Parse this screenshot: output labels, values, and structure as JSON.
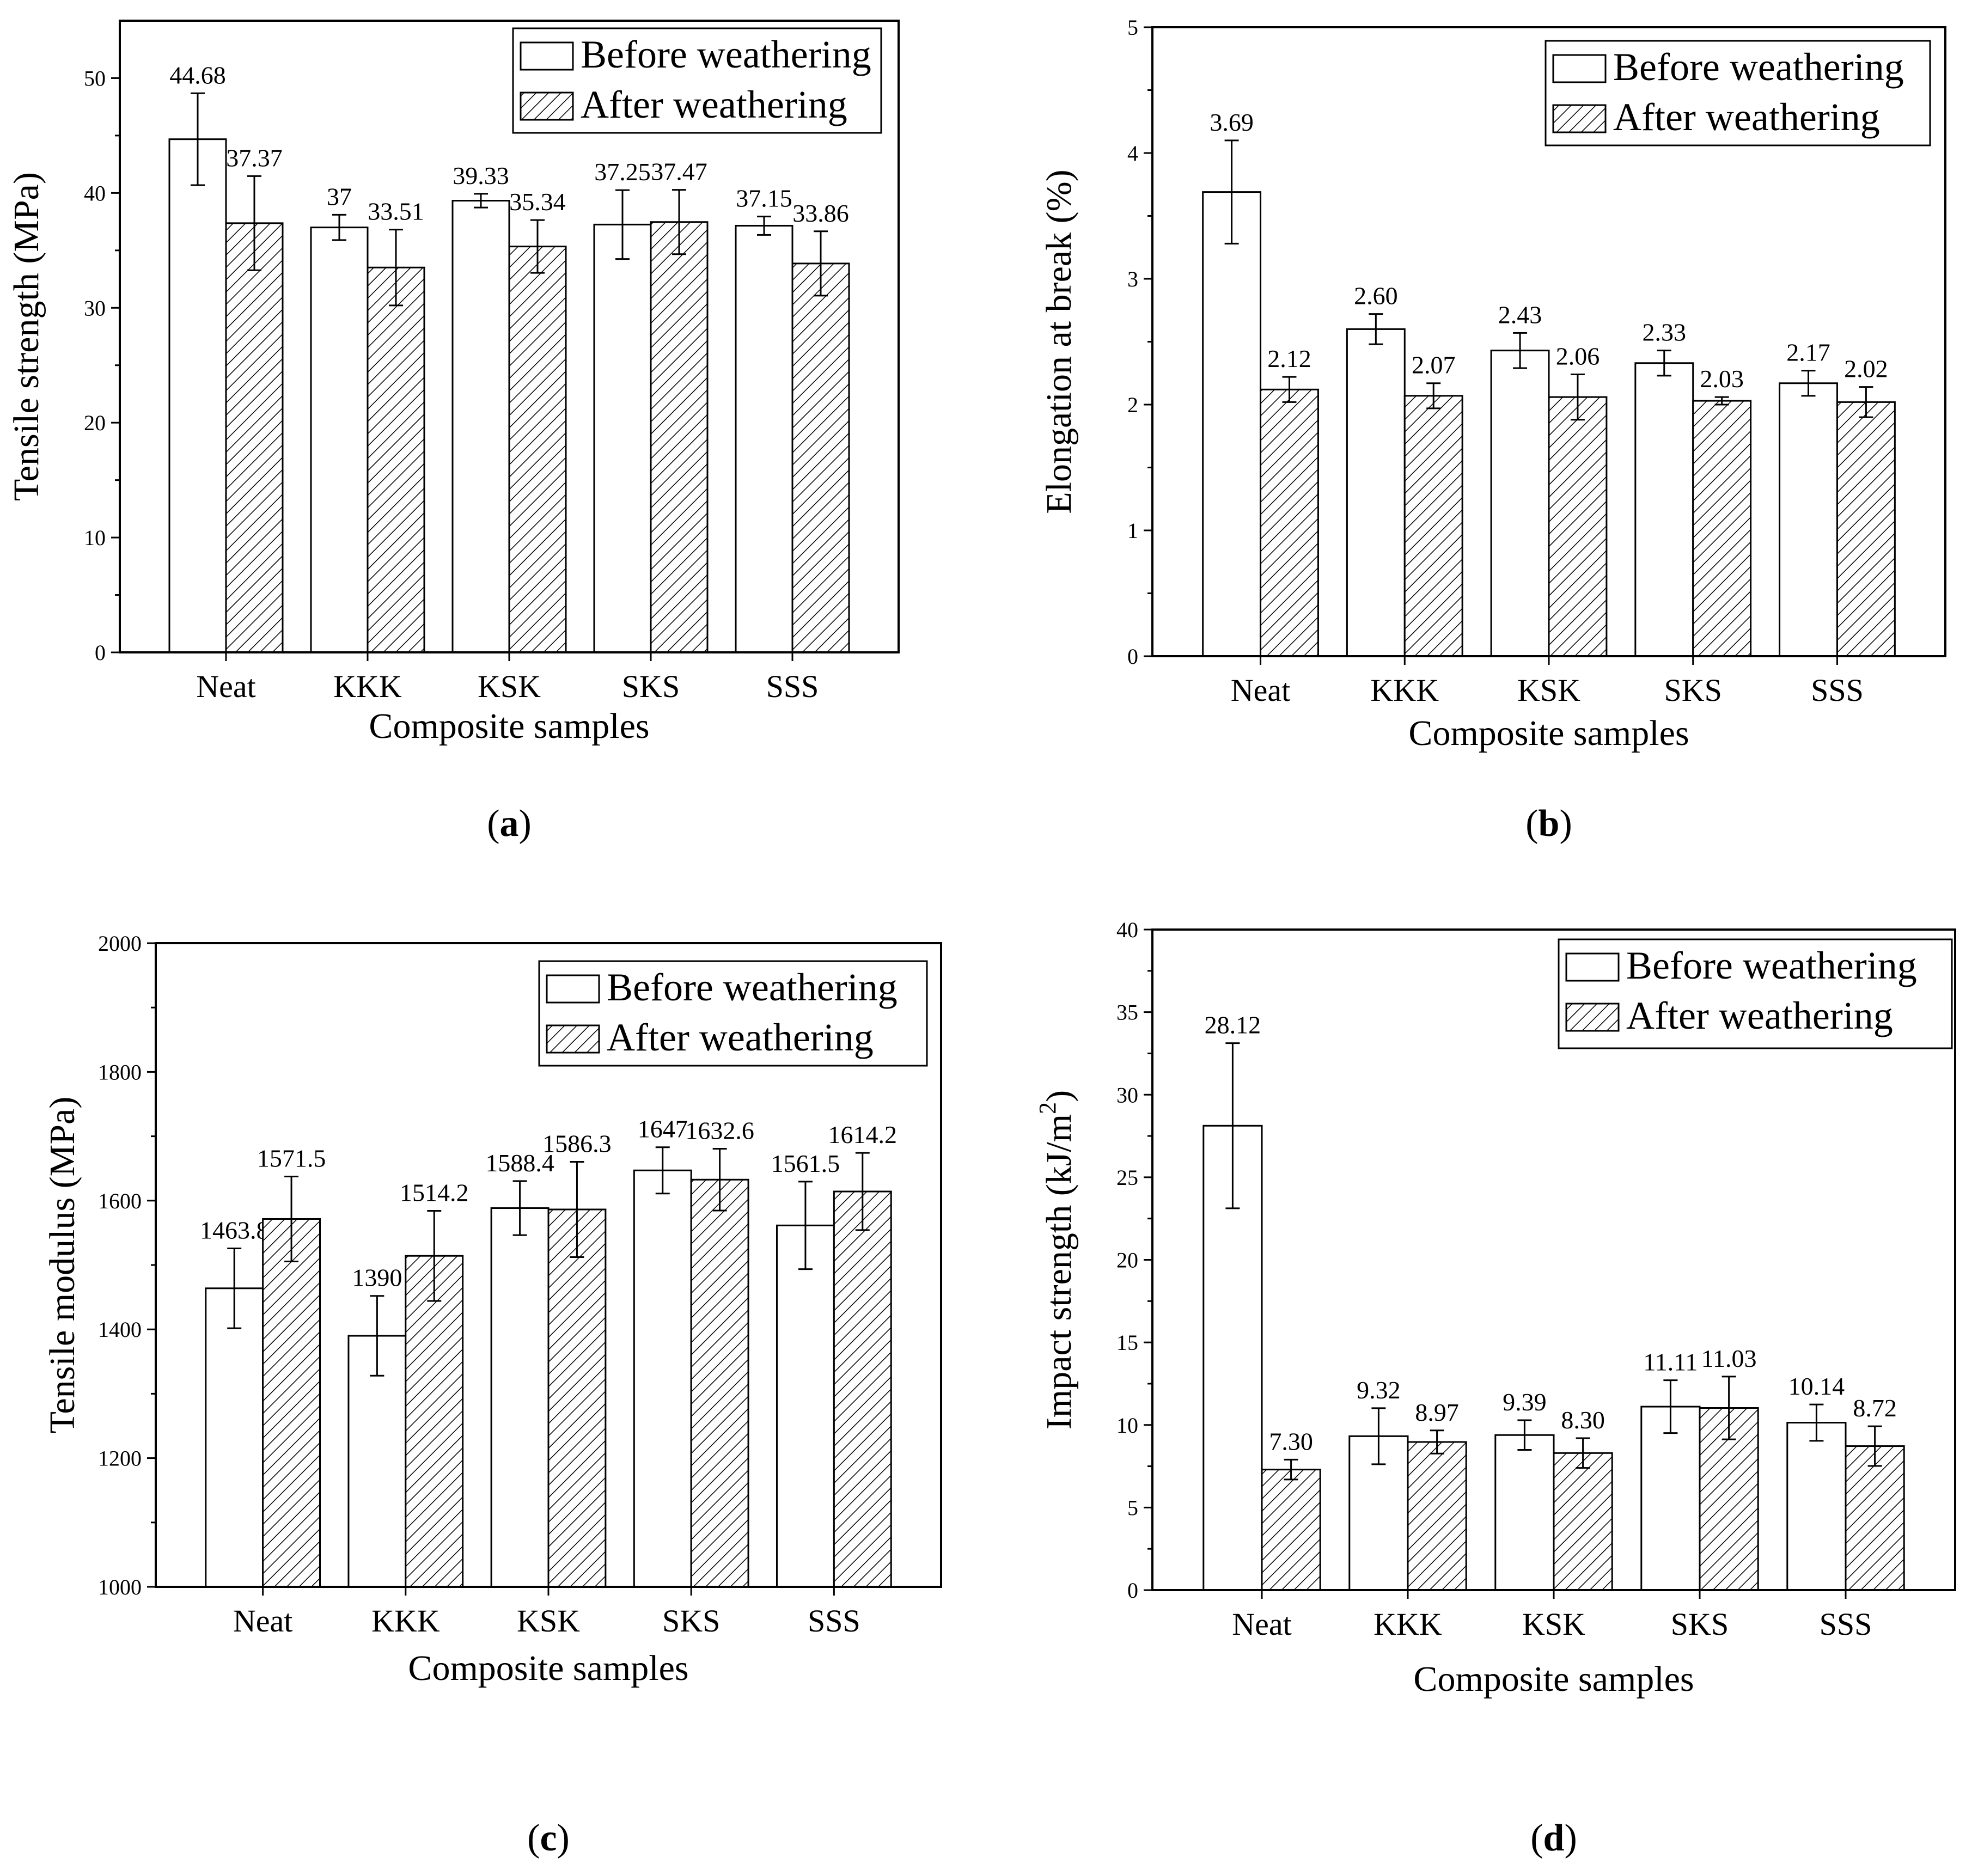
{
  "figure": {
    "legend": {
      "before": "Before weathering",
      "after": "After weathering"
    },
    "xlabel": "Composite samples"
  },
  "chart_data": [
    {
      "type": "bar",
      "panel_label": "a",
      "categories": [
        "Neat",
        "KKK",
        "KSK",
        "SKS",
        "SSS"
      ],
      "xlabel": "Composite samples",
      "ylabel": "Tensile strength (MPa)",
      "ylim": [
        0,
        55
      ],
      "yticks": [
        0,
        10,
        20,
        30,
        40,
        50
      ],
      "ytick_labels": [
        "0",
        "10",
        "20",
        "30",
        "40",
        "50"
      ],
      "legend_position": "top-right",
      "series": [
        {
          "name": "Before weathering",
          "values": [
            44.68,
            37,
            39.33,
            37.25,
            37.15
          ],
          "errors": [
            4.0,
            1.1,
            0.6,
            3.0,
            0.8
          ],
          "labels": [
            "44.68",
            "37",
            "39.33",
            "37.25",
            "37.15"
          ]
        },
        {
          "name": "After weathering",
          "values": [
            37.37,
            33.51,
            35.34,
            37.47,
            33.86
          ],
          "errors": [
            4.1,
            3.3,
            2.3,
            2.8,
            2.8
          ],
          "labels": [
            "37.37",
            "33.51",
            "35.34",
            "37.47",
            "33.86"
          ]
        }
      ]
    },
    {
      "type": "bar",
      "panel_label": "b",
      "categories": [
        "Neat",
        "KKK",
        "KSK",
        "SKS",
        "SSS"
      ],
      "xlabel": "Composite samples",
      "ylabel": "Elongation at break (%)",
      "ylim": [
        0,
        5
      ],
      "yticks": [
        0,
        1,
        2,
        3,
        4,
        5
      ],
      "ytick_labels": [
        "0",
        "1",
        "2",
        "3",
        "4",
        "5"
      ],
      "legend_position": "top-right",
      "series": [
        {
          "name": "Before weathering",
          "values": [
            3.69,
            2.6,
            2.43,
            2.33,
            2.17
          ],
          "errors": [
            0.41,
            0.12,
            0.14,
            0.1,
            0.1
          ],
          "labels": [
            "3.69",
            "2.60",
            "2.43",
            "2.33",
            "2.17"
          ]
        },
        {
          "name": "After weathering",
          "values": [
            2.12,
            2.07,
            2.06,
            2.03,
            2.02
          ],
          "errors": [
            0.1,
            0.1,
            0.18,
            0.03,
            0.12
          ],
          "labels": [
            "2.12",
            "2.07",
            "2.06",
            "2.03",
            "2.02"
          ]
        }
      ]
    },
    {
      "type": "bar",
      "panel_label": "c",
      "categories": [
        "Neat",
        "KKK",
        "KSK",
        "SKS",
        "SSS"
      ],
      "xlabel": "Composite samples",
      "ylabel": "Tensile modulus (MPa)",
      "ylim": [
        1000,
        2000
      ],
      "yticks": [
        1000,
        1200,
        1400,
        1600,
        1800,
        2000
      ],
      "ytick_labels": [
        "1000",
        "1200",
        "1400",
        "1600",
        "1800",
        "2000"
      ],
      "legend_position": "top-right",
      "series": [
        {
          "name": "Before weathering",
          "values": [
            1463.8,
            1390,
            1588.4,
            1647,
            1561.5
          ],
          "errors": [
            62,
            62,
            42,
            36,
            68
          ],
          "labels": [
            "1463.8",
            "1390",
            "1588.4",
            "1647",
            "1561.5"
          ]
        },
        {
          "name": "After weathering",
          "values": [
            1571.5,
            1514.2,
            1586.3,
            1632.6,
            1614.2
          ],
          "errors": [
            66,
            70,
            74,
            48,
            60
          ],
          "labels": [
            "1571.5",
            "1514.2",
            "1586.3",
            "1632.6",
            "1614.2"
          ]
        }
      ]
    },
    {
      "type": "bar",
      "panel_label": "d",
      "categories": [
        "Neat",
        "KKK",
        "KSK",
        "SKS",
        "SSS"
      ],
      "xlabel": "Composite samples",
      "ylabel_main": "Impact strength (kJ/m",
      "ylabel_sup": "2",
      "ylabel_close": ")",
      "ylim": [
        0,
        40
      ],
      "yticks": [
        0,
        5,
        10,
        15,
        20,
        25,
        30,
        35,
        40
      ],
      "ytick_labels": [
        "0",
        "5",
        "10",
        "15",
        "20",
        "25",
        "30",
        "35",
        "40"
      ],
      "legend_position": "top-right",
      "series": [
        {
          "name": "Before weathering",
          "values": [
            28.12,
            9.32,
            9.39,
            11.11,
            10.14
          ],
          "errors": [
            5.0,
            1.7,
            0.9,
            1.6,
            1.1
          ],
          "labels": [
            "28.12",
            "9.32",
            "9.39",
            "11.11",
            "10.14"
          ]
        },
        {
          "name": "After weathering",
          "values": [
            7.3,
            8.97,
            8.3,
            11.03,
            8.72
          ],
          "errors": [
            0.6,
            0.7,
            0.9,
            1.9,
            1.2
          ],
          "labels": [
            "7.30",
            "8.97",
            "8.30",
            "11.03",
            "8.72"
          ]
        }
      ]
    }
  ]
}
